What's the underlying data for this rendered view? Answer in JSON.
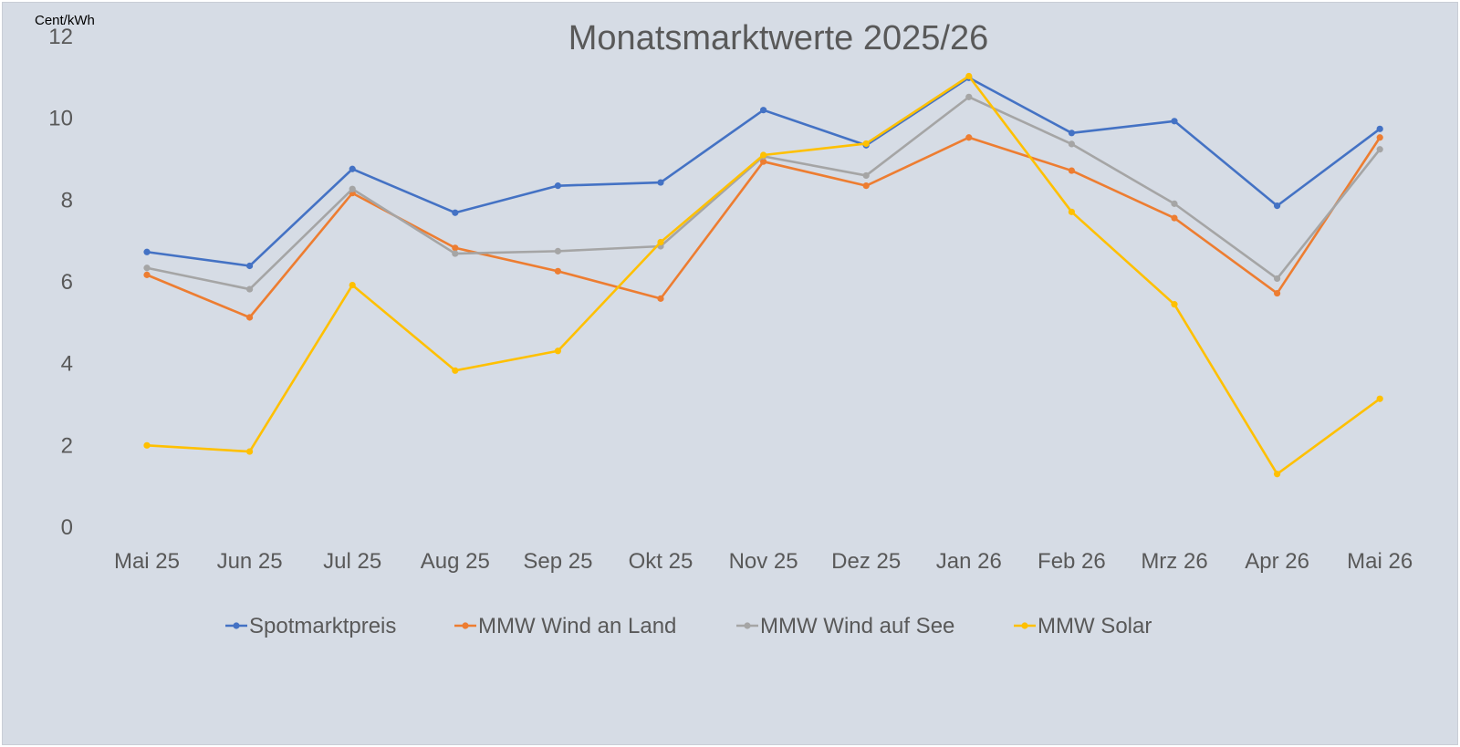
{
  "chart_data": {
    "type": "line",
    "title": "Monatsmarktwerte 2025/26",
    "ylabel": "Cent/kWh",
    "xlabel": "",
    "categories": [
      "Mai 25",
      "Jun 25",
      "Jul 25",
      "Aug 25",
      "Sep 25",
      "Okt 25",
      "Nov 25",
      "Dez 25",
      "Jan 26",
      "Feb 26",
      "Mrz 26",
      "Apr 26",
      "Mai 26"
    ],
    "ylim": [
      0,
      12
    ],
    "yticks": [
      0,
      2,
      4,
      6,
      8,
      10,
      12
    ],
    "grid": false,
    "legend_position": "bottom",
    "series": [
      {
        "name": "Spotmarktpreis",
        "color": "#4472c4",
        "values": [
          6.73,
          6.39,
          8.76,
          7.69,
          8.35,
          8.43,
          10.2,
          9.34,
          10.99,
          9.64,
          9.93,
          7.86,
          9.74
        ]
      },
      {
        "name": "MMW Wind an Land",
        "color": "#ed7d31",
        "values": [
          6.17,
          5.13,
          8.17,
          6.83,
          6.26,
          5.59,
          8.94,
          8.35,
          9.53,
          8.72,
          7.56,
          5.72,
          9.53
        ]
      },
      {
        "name": "MMW Wind auf See",
        "color": "#a5a5a5",
        "values": [
          6.34,
          5.82,
          8.27,
          6.69,
          6.75,
          6.87,
          9.07,
          8.6,
          10.52,
          9.37,
          7.91,
          6.08,
          9.24
        ]
      },
      {
        "name": "MMW Solar",
        "color": "#ffc000",
        "values": [
          2.0,
          1.85,
          5.92,
          3.83,
          4.31,
          6.97,
          9.1,
          9.38,
          11.03,
          7.71,
          5.45,
          1.3,
          3.14
        ]
      }
    ]
  }
}
